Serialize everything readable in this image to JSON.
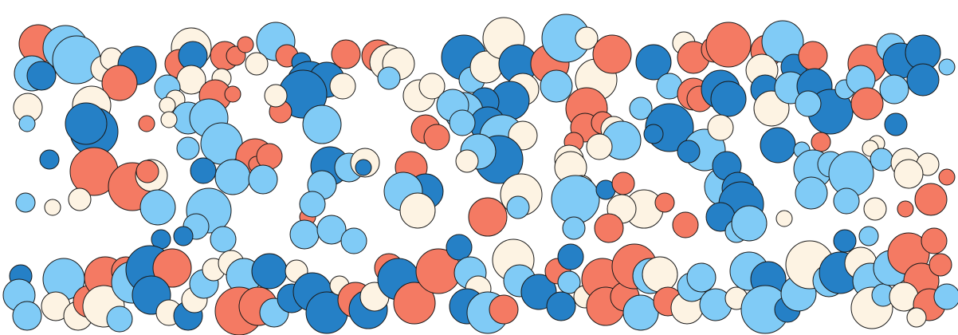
{
  "palette": {
    "background": "#ffffff",
    "outline": "#1a1a1a",
    "dark_blue": "#2580c6",
    "light_blue": "#80cbf6",
    "coral": "#f47a63",
    "cream": "#fdf3e3"
  }
}
